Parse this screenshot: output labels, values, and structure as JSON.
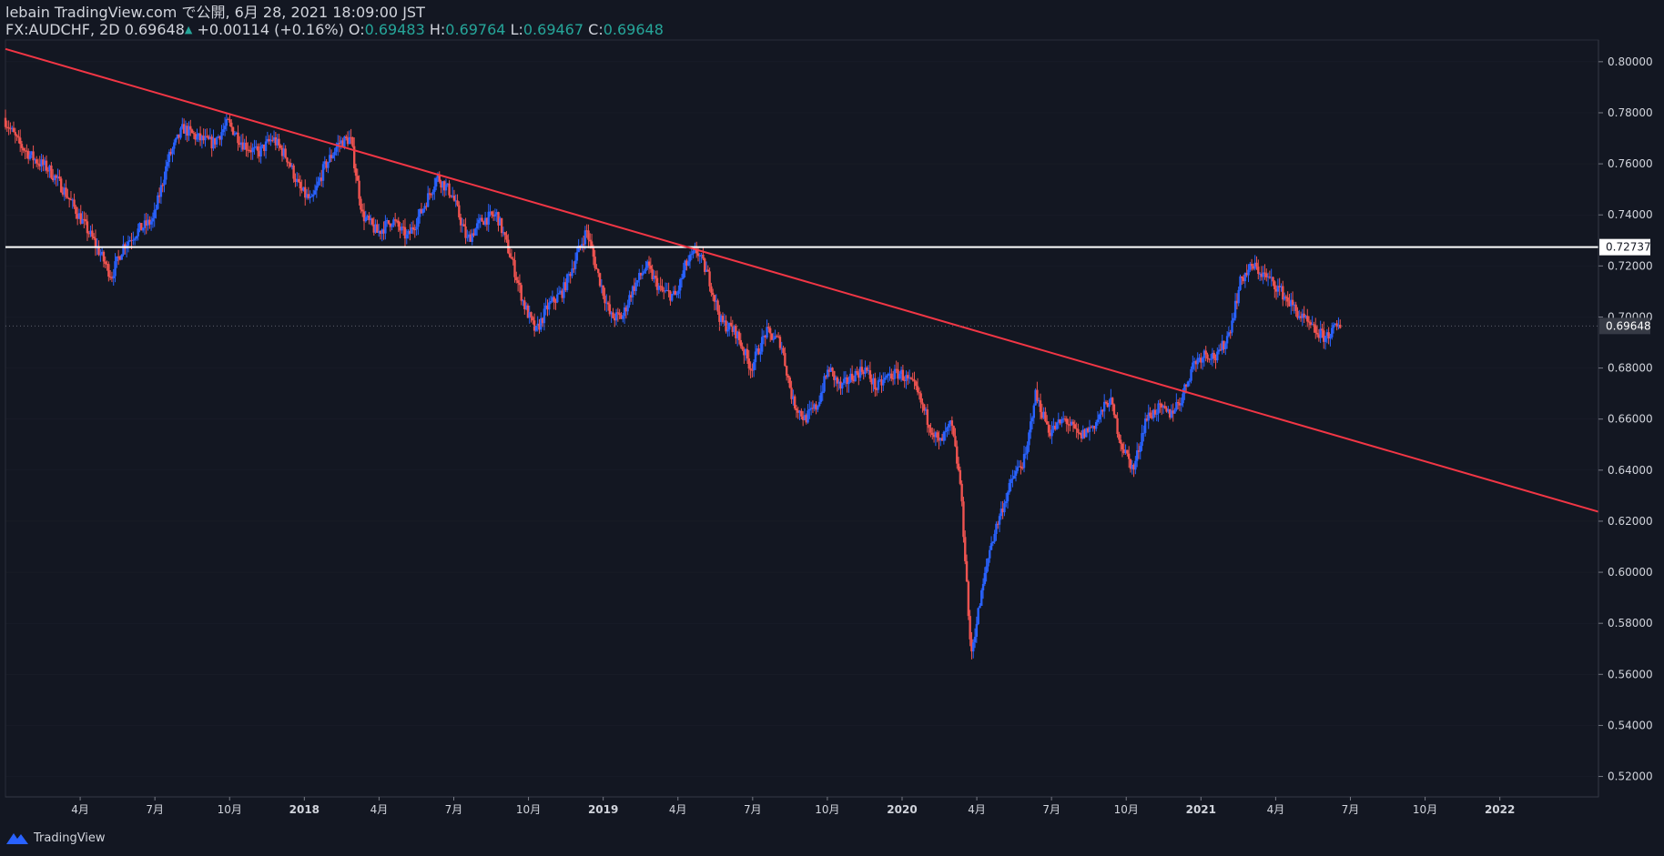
{
  "header": {
    "publish_line": "lebain TradingView.com で公開, 6月 28, 2021 18:09:00 JST",
    "symbol": "FX:AUDCHF, 2D",
    "last": "0.69648",
    "change": "+0.00114 (+0.16%)",
    "o_label": "O:",
    "o_value": "0.69483",
    "h_label": "H:",
    "h_value": "0.69764",
    "l_label": "L:",
    "l_value": "0.69467",
    "c_label": "C:",
    "c_value": "0.69648"
  },
  "footer": {
    "brand": "TradingView"
  },
  "colors": {
    "background": "#131722",
    "up": "#2962ff",
    "down": "#ef5350",
    "trendline": "#f23645",
    "hline": "#ffffff",
    "axis_text": "#d1d4dc",
    "grid": "#2a2e39"
  },
  "chart_data": {
    "type": "candlestick",
    "symbol": "FX:AUDCHF",
    "interval": "2D",
    "ylim": [
      0.512,
      0.8085
    ],
    "xlim": [
      2017.0,
      2022.33
    ],
    "y_ticks": [
      "0.80000",
      "0.78000",
      "0.76000",
      "0.74000",
      "0.72000",
      "0.70000",
      "0.68000",
      "0.66000",
      "0.64000",
      "0.62000",
      "0.60000",
      "0.58000",
      "0.56000",
      "0.54000",
      "0.52000"
    ],
    "x_ticks": [
      {
        "label": "4月",
        "t": 2017.25
      },
      {
        "label": "7月",
        "t": 2017.5
      },
      {
        "label": "10月",
        "t": 2017.75
      },
      {
        "label": "2018",
        "t": 2018.0
      },
      {
        "label": "4月",
        "t": 2018.25
      },
      {
        "label": "7月",
        "t": 2018.5
      },
      {
        "label": "10月",
        "t": 2018.75
      },
      {
        "label": "2019",
        "t": 2019.0
      },
      {
        "label": "4月",
        "t": 2019.25
      },
      {
        "label": "7月",
        "t": 2019.5
      },
      {
        "label": "10月",
        "t": 2019.75
      },
      {
        "label": "2020",
        "t": 2020.0
      },
      {
        "label": "4月",
        "t": 2020.25
      },
      {
        "label": "7月",
        "t": 2020.5
      },
      {
        "label": "10月",
        "t": 2020.75
      },
      {
        "label": "2021",
        "t": 2021.0
      },
      {
        "label": "4月",
        "t": 2021.25
      },
      {
        "label": "7月",
        "t": 2021.5
      },
      {
        "label": "10月",
        "t": 2021.75
      },
      {
        "label": "2022",
        "t": 2022.0
      }
    ],
    "price_path": [
      [
        2017.0,
        0.778
      ],
      [
        2017.05,
        0.768
      ],
      [
        2017.1,
        0.762
      ],
      [
        2017.15,
        0.758
      ],
      [
        2017.2,
        0.75
      ],
      [
        2017.25,
        0.74
      ],
      [
        2017.3,
        0.73
      ],
      [
        2017.36,
        0.716
      ],
      [
        2017.4,
        0.728
      ],
      [
        2017.45,
        0.734
      ],
      [
        2017.5,
        0.738
      ],
      [
        2017.55,
        0.762
      ],
      [
        2017.6,
        0.774
      ],
      [
        2017.65,
        0.77
      ],
      [
        2017.7,
        0.768
      ],
      [
        2017.75,
        0.776
      ],
      [
        2017.8,
        0.768
      ],
      [
        2017.85,
        0.764
      ],
      [
        2017.9,
        0.77
      ],
      [
        2017.95,
        0.762
      ],
      [
        2017.99,
        0.75
      ],
      [
        2018.03,
        0.745
      ],
      [
        2018.07,
        0.758
      ],
      [
        2018.12,
        0.768
      ],
      [
        2018.16,
        0.77
      ],
      [
        2018.2,
        0.74
      ],
      [
        2018.25,
        0.733
      ],
      [
        2018.3,
        0.738
      ],
      [
        2018.35,
        0.731
      ],
      [
        2018.4,
        0.742
      ],
      [
        2018.45,
        0.755
      ],
      [
        2018.5,
        0.748
      ],
      [
        2018.55,
        0.73
      ],
      [
        2018.6,
        0.738
      ],
      [
        2018.65,
        0.74
      ],
      [
        2018.7,
        0.722
      ],
      [
        2018.74,
        0.705
      ],
      [
        2018.78,
        0.694
      ],
      [
        2018.82,
        0.704
      ],
      [
        2018.87,
        0.71
      ],
      [
        2018.91,
        0.722
      ],
      [
        2018.95,
        0.734
      ],
      [
        2018.98,
        0.72
      ],
      [
        2019.03,
        0.7
      ],
      [
        2019.07,
        0.7
      ],
      [
        2019.1,
        0.71
      ],
      [
        2019.15,
        0.72
      ],
      [
        2019.2,
        0.71
      ],
      [
        2019.25,
        0.708
      ],
      [
        2019.28,
        0.72
      ],
      [
        2019.32,
        0.726
      ],
      [
        2019.36,
        0.715
      ],
      [
        2019.4,
        0.698
      ],
      [
        2019.45,
        0.694
      ],
      [
        2019.5,
        0.68
      ],
      [
        2019.55,
        0.694
      ],
      [
        2019.6,
        0.69
      ],
      [
        2019.64,
        0.667
      ],
      [
        2019.68,
        0.66
      ],
      [
        2019.72,
        0.665
      ],
      [
        2019.76,
        0.68
      ],
      [
        2019.8,
        0.672
      ],
      [
        2019.84,
        0.677
      ],
      [
        2019.88,
        0.68
      ],
      [
        2019.92,
        0.672
      ],
      [
        2019.96,
        0.677
      ],
      [
        2020.0,
        0.678
      ],
      [
        2020.05,
        0.672
      ],
      [
        2020.09,
        0.66
      ],
      [
        2020.13,
        0.65
      ],
      [
        2020.17,
        0.658
      ],
      [
        2020.2,
        0.635
      ],
      [
        2020.22,
        0.6
      ],
      [
        2020.235,
        0.567
      ],
      [
        2020.26,
        0.584
      ],
      [
        2020.3,
        0.61
      ],
      [
        2020.34,
        0.625
      ],
      [
        2020.38,
        0.638
      ],
      [
        2020.42,
        0.645
      ],
      [
        2020.45,
        0.67
      ],
      [
        2020.5,
        0.655
      ],
      [
        2020.55,
        0.66
      ],
      [
        2020.6,
        0.653
      ],
      [
        2020.65,
        0.658
      ],
      [
        2020.7,
        0.668
      ],
      [
        2020.74,
        0.65
      ],
      [
        2020.78,
        0.64
      ],
      [
        2020.82,
        0.66
      ],
      [
        2020.86,
        0.664
      ],
      [
        2020.9,
        0.662
      ],
      [
        2020.94,
        0.668
      ],
      [
        2020.98,
        0.682
      ],
      [
        2021.02,
        0.686
      ],
      [
        2021.06,
        0.684
      ],
      [
        2021.1,
        0.694
      ],
      [
        2021.14,
        0.715
      ],
      [
        2021.18,
        0.72
      ],
      [
        2021.22,
        0.716
      ],
      [
        2021.26,
        0.712
      ],
      [
        2021.3,
        0.706
      ],
      [
        2021.34,
        0.7
      ],
      [
        2021.38,
        0.695
      ],
      [
        2021.42,
        0.692
      ],
      [
        2021.45,
        0.695
      ],
      [
        2021.47,
        0.6965
      ]
    ],
    "trendline": {
      "from": [
        2017.0,
        0.805
      ],
      "to": [
        2022.33,
        0.6237
      ]
    },
    "horizontal_line": 0.72737,
    "horizontal_line_label": "0.72737",
    "last_price": 0.69648,
    "last_price_label": "0.69648"
  }
}
